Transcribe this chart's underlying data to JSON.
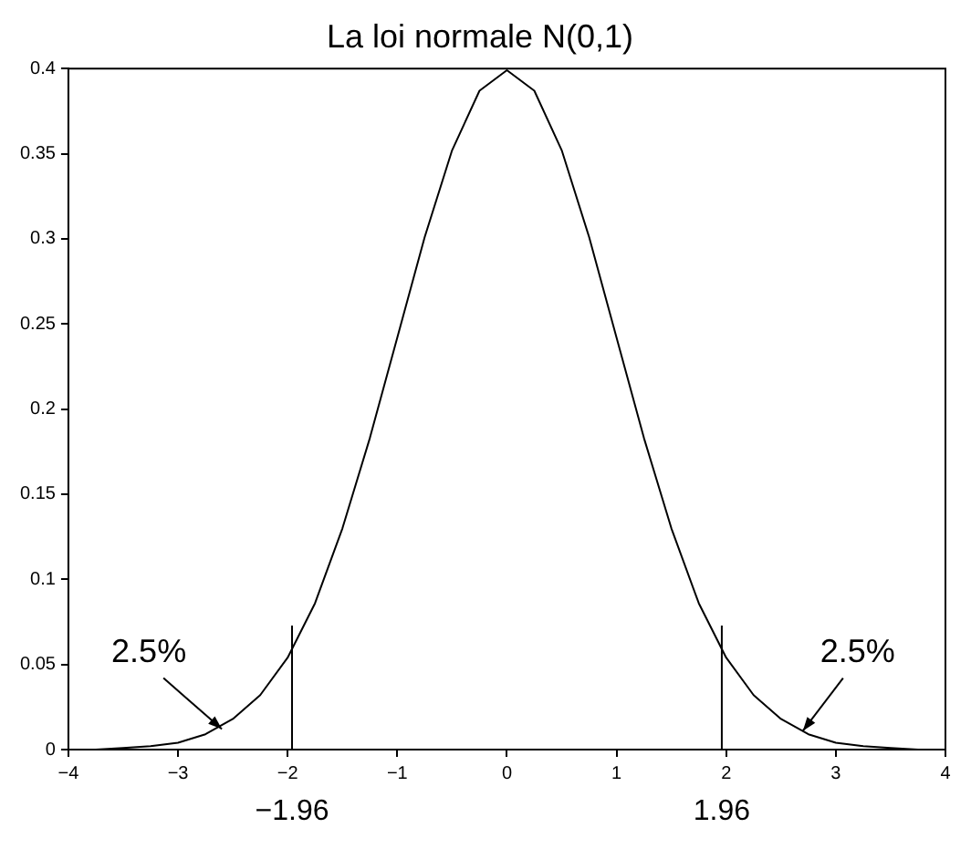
{
  "chart_data": {
    "type": "line",
    "title": "La loi normale N(0,1)",
    "x": [
      -4,
      -3.75,
      -3.5,
      -3.25,
      -3,
      -2.75,
      -2.5,
      -2.25,
      -2,
      -1.75,
      -1.5,
      -1.25,
      -1,
      -0.75,
      -0.5,
      -0.25,
      0,
      0.25,
      0.5,
      0.75,
      1,
      1.25,
      1.5,
      1.75,
      2,
      2.25,
      2.5,
      2.75,
      3,
      3.25,
      3.5,
      3.75,
      4
    ],
    "series": [
      {
        "color": "#000000",
        "values": [
          0.0,
          0.0,
          0.001,
          0.002,
          0.004,
          0.009,
          0.018,
          0.032,
          0.054,
          0.086,
          0.13,
          0.183,
          0.242,
          0.301,
          0.352,
          0.387,
          0.399,
          0.387,
          0.352,
          0.301,
          0.242,
          0.183,
          0.13,
          0.086,
          0.054,
          0.032,
          0.018,
          0.009,
          0.004,
          0.002,
          0.001,
          0.0,
          0.0
        ]
      }
    ],
    "xlim": [
      -4,
      4
    ],
    "xticks": [
      {
        "value": -4,
        "label": "−4"
      },
      {
        "value": -3,
        "label": "−3"
      },
      {
        "value": -2,
        "label": "−2"
      },
      {
        "value": -1,
        "label": "−1"
      },
      0,
      1,
      2,
      3,
      4
    ],
    "ylim": [
      0,
      0.4
    ],
    "yticks": [
      0,
      0.05,
      0.1,
      0.15,
      0.2,
      0.25,
      0.3,
      0.35,
      0.4
    ],
    "ref_lines": [
      {
        "axis": "x",
        "value": -1.96,
        "label": "−1.96",
        "color": "#000000"
      },
      {
        "axis": "x",
        "value": 1.96,
        "label": "1.96",
        "color": "#000000"
      }
    ],
    "annotations": [
      {
        "text": "2.5%",
        "x": -2.6,
        "y": 0.012
      },
      {
        "text": "2.5%",
        "x": 2.7,
        "y": 0.011
      }
    ],
    "grid": false,
    "legend": false,
    "marker": "none",
    "line_style": "solid"
  }
}
